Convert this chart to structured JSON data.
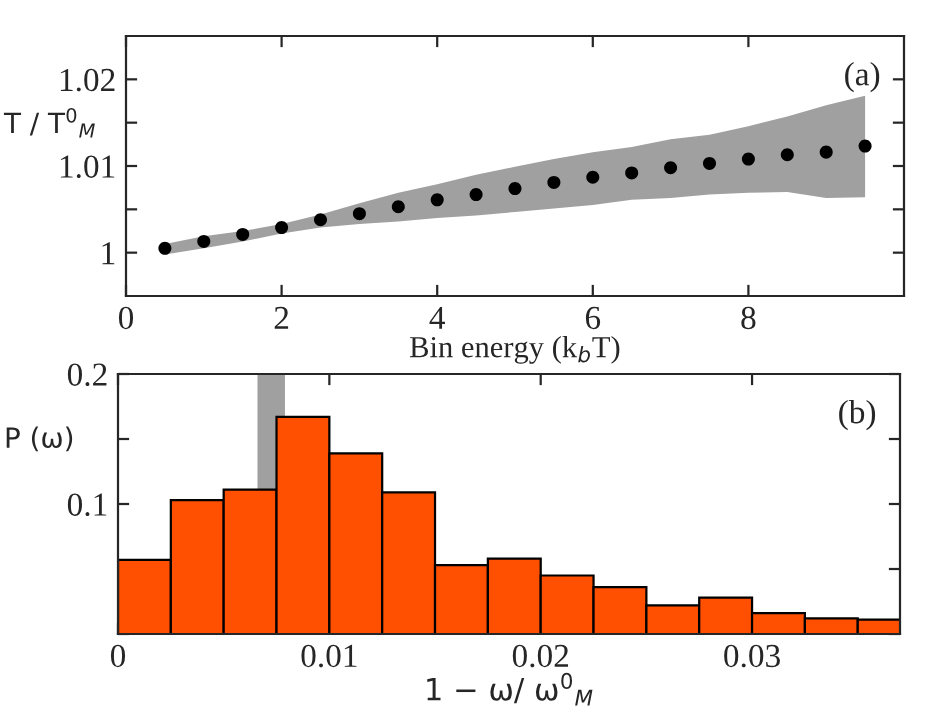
{
  "chart_data": [
    {
      "type": "scatter",
      "xlabel": "Bin energy (k$_{b}$T)",
      "ylabel": "T / T$^{0}$$_{M}$",
      "annotations": [
        "(a)"
      ],
      "marker": "circle",
      "grid": false,
      "xlim": [
        0,
        10
      ],
      "xticks": [
        0,
        2,
        4,
        6,
        8
      ],
      "ylim": [
        0.995,
        1.025
      ],
      "yticks": [
        1,
        {
          "value": 1.005,
          "label": null
        },
        1.01,
        {
          "value": 1.015,
          "label": null
        },
        1.02
      ],
      "x": [
        0.5,
        1,
        1.5,
        2,
        2.5,
        3,
        3.5,
        4,
        4.5,
        5,
        5.5,
        6,
        6.5,
        7,
        7.5,
        8,
        8.5,
        9,
        9.5
      ],
      "series": [
        {
          "color": "#000000",
          "values": [
            1.0005,
            1.0013,
            1.0021,
            1.0029,
            1.0038,
            1.0045,
            1.0053,
            1.0061,
            1.0067,
            1.0074,
            1.0081,
            1.0087,
            1.0092,
            1.0098,
            1.0103,
            1.0108,
            1.0113,
            1.0116,
            1.0123
          ],
          "upper": [
            1.001,
            1.0019,
            1.0025,
            1.0033,
            1.0044,
            1.0057,
            1.0069,
            1.0079,
            1.009,
            1.0099,
            1.0108,
            1.0116,
            1.0122,
            1.0131,
            1.0136,
            1.0146,
            1.0157,
            1.017,
            1.0181
          ],
          "lower": [
            0.9998,
            1.0005,
            1.0013,
            1.0022,
            1.0029,
            1.0033,
            1.0036,
            1.004,
            1.0043,
            1.0047,
            1.0051,
            1.0055,
            1.0061,
            1.0063,
            1.0067,
            1.0069,
            1.007,
            1.0063,
            1.0064
          ]
        }
      ]
    },
    {
      "type": "histogram",
      "xlabel": "1 − ω/ ω$^{0}$$_{M}$",
      "ylabel": "P (ω)",
      "annotations": [
        "(b)"
      ],
      "grid": false,
      "color": "#ff4f00",
      "bins": [
        0,
        0.0025,
        0.005,
        0.0075,
        0.01,
        0.0125,
        0.015,
        0.0175,
        0.02,
        0.0225,
        0.025,
        0.0275,
        0.03,
        0.0325,
        0.035,
        0.0375
      ],
      "values": [
        0.057,
        0.103,
        0.111,
        0.167,
        0.139,
        0.109,
        0.053,
        0.058,
        0.045,
        0.036,
        0.022,
        0.028,
        0.016,
        0.012,
        0.011
      ],
      "xlim": [
        0,
        0.037
      ],
      "xticks": [
        0,
        0.01,
        0.02,
        0.03
      ],
      "ylim": [
        0,
        0.2
      ],
      "yticks": [
        {
          "value": 0,
          "label": null
        },
        {
          "value": 0.05,
          "label": null
        },
        0.1,
        {
          "value": 0.15,
          "label": null
        },
        0.2
      ],
      "bands": [
        {
          "axis": "x",
          "from": 0.0066,
          "to": 0.0079,
          "color": "#a0a0a0"
        }
      ]
    }
  ]
}
